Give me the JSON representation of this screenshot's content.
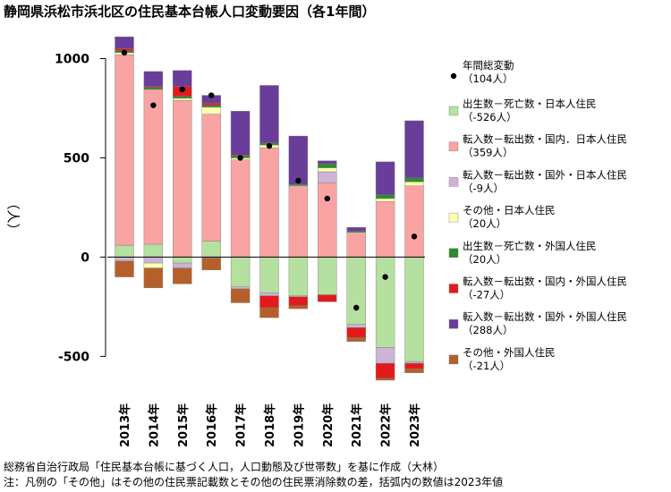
{
  "title": "静岡県浜松市浜北区の住民基本台帳人口変動要因（各1年間）",
  "notes": [
    "総務省自治行政局「住民基本台帳に基づく人口，人口動態及び世帯数」を基に作成（大林）",
    "注：凡例の「その他」はその他の住民票記載数とその他の住民票消除数の差，括弧内の数値は2023年値"
  ],
  "chart_data": {
    "type": "bar",
    "stacked": true,
    "ylabel": "（人）",
    "ylim": [
      -620,
      1160
    ],
    "yticks": [
      -500,
      0,
      500,
      1000
    ],
    "categories": [
      "2013年",
      "2014年",
      "2015年",
      "2016年",
      "2017年",
      "2018年",
      "2019年",
      "2020年",
      "2021年",
      "2022年",
      "2023年"
    ],
    "series": [
      {
        "name": "出生数－死亡数・日本人住民",
        "legend_value": "（-526人）",
        "color": "#b5e0a0",
        "values": [
          60,
          65,
          -30,
          80,
          -150,
          -180,
          -195,
          -190,
          -340,
          -455,
          -526
        ]
      },
      {
        "name": "転入数－転出数・国内．日本人住民",
        "legend_value": "（359人）",
        "color": "#f9a3a3",
        "values": [
          960,
          780,
          790,
          640,
          490,
          550,
          355,
          375,
          120,
          280,
          359
        ]
      },
      {
        "name": "転入数－転出数・国外・日本人住民",
        "legend_value": "（-9人）",
        "color": "#cdb3d6",
        "values": [
          -20,
          -30,
          -25,
          -5,
          -10,
          -15,
          -5,
          55,
          -15,
          -80,
          -9
        ]
      },
      {
        "name": "その他・日本人住民",
        "legend_value": "（20人）",
        "color": "#ffffb0",
        "values": [
          10,
          -25,
          10,
          35,
          10,
          15,
          5,
          20,
          5,
          15,
          20
        ]
      },
      {
        "name": "出生数－死亡数・外国人住民",
        "legend_value": "（20人）",
        "color": "#2e8b2e",
        "values": [
          10,
          10,
          10,
          10,
          10,
          10,
          5,
          20,
          5,
          20,
          20
        ]
      },
      {
        "name": "転入数－転出数・国内・外国人住民",
        "legend_value": "（-27人）",
        "color": "#e31a1c",
        "values": [
          10,
          5,
          50,
          10,
          5,
          -60,
          -45,
          -35,
          -50,
          -75,
          -27
        ]
      },
      {
        "name": "転入数－転出数・国外・外国人住民",
        "legend_value": "（288人）",
        "color": "#6a3d9a",
        "values": [
          60,
          75,
          80,
          40,
          220,
          290,
          245,
          15,
          20,
          165,
          288
        ]
      },
      {
        "name": "その他・外国人住民",
        "legend_value": "（-21人）",
        "color": "#b5602a",
        "values": [
          -80,
          -100,
          -80,
          -60,
          -70,
          -50,
          -15,
          0,
          -20,
          -10,
          -21
        ]
      }
    ],
    "total": {
      "name": "年間総変動",
      "legend_value": "（104人）",
      "values": [
        1030,
        765,
        845,
        815,
        500,
        560,
        385,
        295,
        -255,
        -100,
        104
      ]
    }
  }
}
